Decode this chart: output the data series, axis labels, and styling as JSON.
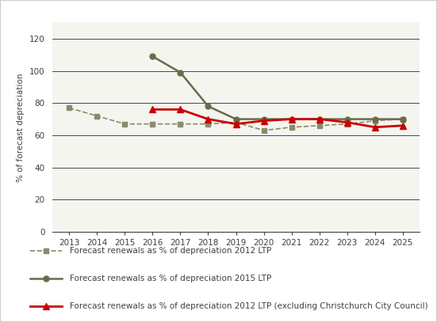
{
  "ylabel": "% of forecast depreciation",
  "ylim": [
    0,
    130
  ],
  "yticks": [
    0,
    20,
    40,
    60,
    80,
    100,
    120
  ],
  "xlim": [
    2012.4,
    2025.6
  ],
  "xticks": [
    2013,
    2014,
    2015,
    2016,
    2017,
    2018,
    2019,
    2020,
    2021,
    2022,
    2023,
    2024,
    2025
  ],
  "series_2012ltp": {
    "x": [
      2013,
      2014,
      2015,
      2016,
      2017,
      2018,
      2019,
      2020,
      2021,
      2022,
      2023,
      2024,
      2025
    ],
    "y": [
      77,
      72,
      67,
      67,
      67,
      67,
      68,
      63,
      65,
      66,
      67,
      69,
      70
    ],
    "color": "#8b8b6b",
    "linestyle": "dashed",
    "marker": "s",
    "linewidth": 1.2,
    "markersize": 4,
    "label": "Forecast renewals as % of depreciation 2012 LTP"
  },
  "series_2015ltp": {
    "x": [
      2016,
      2017,
      2018,
      2019,
      2020,
      2021,
      2022,
      2023,
      2024,
      2025
    ],
    "y": [
      109,
      99,
      78,
      70,
      70,
      70,
      70,
      70,
      70,
      70
    ],
    "color": "#6b6b4b",
    "linestyle": "solid",
    "marker": "o",
    "linewidth": 1.8,
    "markersize": 5,
    "label": "Forecast renewals as % of depreciation 2015 LTP"
  },
  "series_excl": {
    "x": [
      2016,
      2017,
      2018,
      2019,
      2020,
      2021,
      2022,
      2023,
      2024,
      2025
    ],
    "y": [
      76,
      76,
      70,
      67,
      69,
      70,
      70,
      68,
      65,
      66
    ],
    "color": "#cc0000",
    "linestyle": "solid",
    "marker": "^",
    "linewidth": 2.0,
    "markersize": 6,
    "label": "Forecast renewals as % of depreciation 2012 LTP (excluding Christchurch City Council)"
  },
  "background_color": "#ffffff",
  "plot_bg_color": "#f5f5f0",
  "grid_color": "#000000",
  "font_color": "#404040",
  "font_size": 7.5,
  "border_color": "#cccccc"
}
